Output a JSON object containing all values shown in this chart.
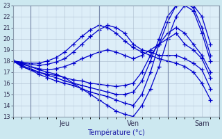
{
  "xlabel": "Température (°c)",
  "bg_color": "#cce8f0",
  "plot_bg_color": "#ddeef8",
  "line_color": "#0000cc",
  "marker": "+",
  "markersize": 4,
  "linewidth": 0.9,
  "ylim": [
    13,
    23
  ],
  "yticks": [
    13,
    14,
    15,
    16,
    17,
    18,
    19,
    20,
    21,
    22,
    23
  ],
  "xlim": [
    0,
    72
  ],
  "day_labels": [
    "Jeu",
    "Ven",
    "Sam"
  ],
  "day_positions": [
    18,
    42,
    66
  ],
  "day_vlines": [
    6,
    30,
    54
  ],
  "series": [
    {
      "x": [
        0,
        3,
        6,
        9,
        12,
        15,
        18,
        21,
        24,
        27,
        30,
        33,
        36,
        39,
        42,
        45,
        48,
        51,
        54,
        57,
        60,
        63,
        66,
        69
      ],
      "y": [
        18,
        17.7,
        17.5,
        17.2,
        17.0,
        16.8,
        16.5,
        16.0,
        15.5,
        15.0,
        14.5,
        14.0,
        13.5,
        13.2,
        13.0,
        14.0,
        15.5,
        17.5,
        20.0,
        22.0,
        23.0,
        23.0,
        22.0,
        19.5
      ]
    },
    {
      "x": [
        0,
        3,
        6,
        9,
        12,
        15,
        18,
        21,
        24,
        27,
        30,
        33,
        36,
        39,
        42,
        45,
        48,
        51,
        54,
        57,
        60,
        63,
        66,
        69
      ],
      "y": [
        18,
        17.5,
        17.2,
        16.8,
        16.5,
        16.2,
        16.0,
        15.8,
        15.5,
        15.2,
        15.0,
        14.8,
        14.5,
        14.2,
        14.0,
        15.0,
        17.0,
        19.5,
        21.5,
        23.0,
        23.2,
        22.8,
        21.0,
        18.5
      ]
    },
    {
      "x": [
        0,
        3,
        6,
        9,
        12,
        15,
        18,
        21,
        24,
        27,
        30,
        33,
        36,
        39,
        42,
        45,
        48,
        51,
        54,
        57,
        60,
        63,
        66,
        69
      ],
      "y": [
        18,
        17.6,
        17.3,
        17.0,
        16.7,
        16.5,
        16.2,
        16.0,
        15.8,
        15.6,
        15.4,
        15.2,
        15.0,
        15.0,
        15.2,
        16.2,
        18.0,
        20.0,
        22.0,
        23.0,
        23.0,
        22.5,
        20.5,
        18.0
      ]
    },
    {
      "x": [
        0,
        3,
        6,
        9,
        12,
        15,
        18,
        21,
        24,
        27,
        30,
        33,
        36,
        39,
        42,
        45,
        48,
        51,
        54,
        57,
        60,
        63,
        66,
        69
      ],
      "y": [
        18,
        17.5,
        17.2,
        17.0,
        16.8,
        16.7,
        16.5,
        16.3,
        16.2,
        16.0,
        15.9,
        15.8,
        15.7,
        15.8,
        16.0,
        17.0,
        18.5,
        19.5,
        20.5,
        21.0,
        20.5,
        19.5,
        18.5,
        17.0
      ]
    },
    {
      "x": [
        0,
        3,
        6,
        9,
        12,
        15,
        18,
        21,
        24,
        27,
        30,
        33,
        36,
        39,
        42,
        45,
        48,
        51,
        54,
        57,
        60,
        63,
        66,
        69
      ],
      "y": [
        18,
        17.8,
        17.5,
        17.3,
        17.2,
        17.3,
        17.5,
        17.8,
        18.2,
        18.5,
        18.8,
        19.0,
        18.8,
        18.5,
        18.2,
        18.5,
        19.0,
        19.5,
        20.0,
        20.5,
        19.5,
        19.0,
        18.2,
        16.5
      ]
    },
    {
      "x": [
        0,
        3,
        6,
        9,
        12,
        15,
        18,
        21,
        24,
        27,
        30,
        33,
        36,
        39,
        42,
        45,
        48,
        51,
        54,
        57,
        60,
        63,
        66,
        69
      ],
      "y": [
        18,
        17.8,
        17.7,
        17.6,
        17.7,
        17.9,
        18.2,
        18.8,
        19.5,
        20.2,
        20.8,
        21.2,
        21.0,
        20.5,
        19.5,
        19.0,
        18.8,
        18.5,
        18.5,
        18.5,
        18.2,
        17.8,
        17.2,
        15.5
      ]
    },
    {
      "x": [
        0,
        3,
        6,
        9,
        12,
        15,
        18,
        21,
        24,
        27,
        30,
        33,
        36,
        39,
        42,
        45,
        48,
        51,
        54,
        57,
        60,
        63,
        66,
        69
      ],
      "y": [
        18,
        17.9,
        17.8,
        17.8,
        18.0,
        18.3,
        18.8,
        19.5,
        20.2,
        20.8,
        21.2,
        21.0,
        20.5,
        19.8,
        19.2,
        18.8,
        18.5,
        18.2,
        18.0,
        17.8,
        17.5,
        17.0,
        16.0,
        14.5
      ]
    }
  ]
}
